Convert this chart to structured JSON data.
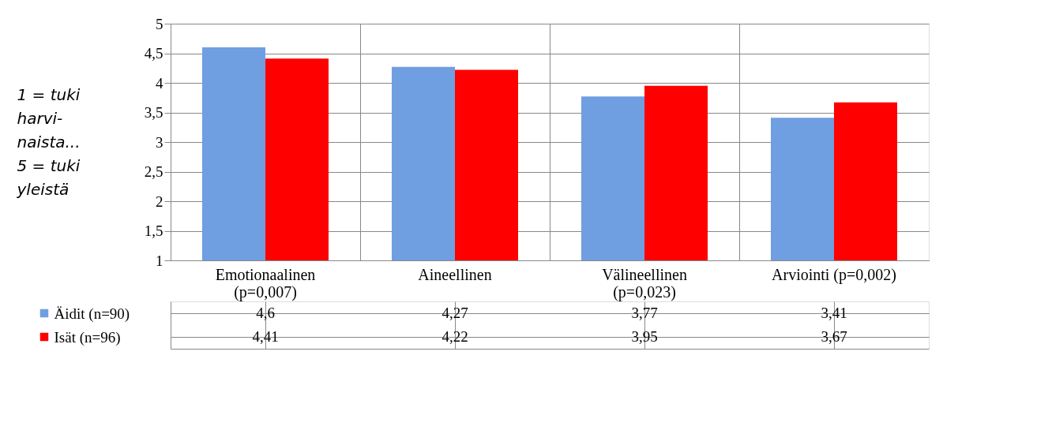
{
  "chart_data": {
    "type": "bar",
    "ylabel": "1 = tuki\nharvi-\nnaista...\n5 = tuki\nyleistä",
    "categories": [
      "Emotionaalinen\n(p=0,007)",
      "Aineellinen",
      "Välineellinen\n(p=0,023)",
      "Arviointi (p=0,002)"
    ],
    "series": [
      {
        "name": "Äidit (n=90)",
        "color": "#6f9fe0",
        "values": [
          4.6,
          4.27,
          3.77,
          3.41
        ],
        "value_labels": [
          "4,6",
          "4,27",
          "3,77",
          "3,41"
        ]
      },
      {
        "name": "Isät (n=96)",
        "color": "#ff0000",
        "values": [
          4.41,
          4.22,
          3.95,
          3.67
        ],
        "value_labels": [
          "4,41",
          "4,22",
          "3,95",
          "3,67"
        ]
      }
    ],
    "ylim": [
      1,
      5
    ],
    "yticks": [
      1,
      {
        "value": 1.5,
        "label": "1,5"
      },
      2,
      {
        "value": 2.5,
        "label": "2,5"
      },
      3,
      {
        "value": 3.5,
        "label": "3,5"
      },
      4,
      {
        "value": 4.5,
        "label": "4,5"
      },
      5
    ],
    "grid": "y",
    "legend": "bottom"
  }
}
